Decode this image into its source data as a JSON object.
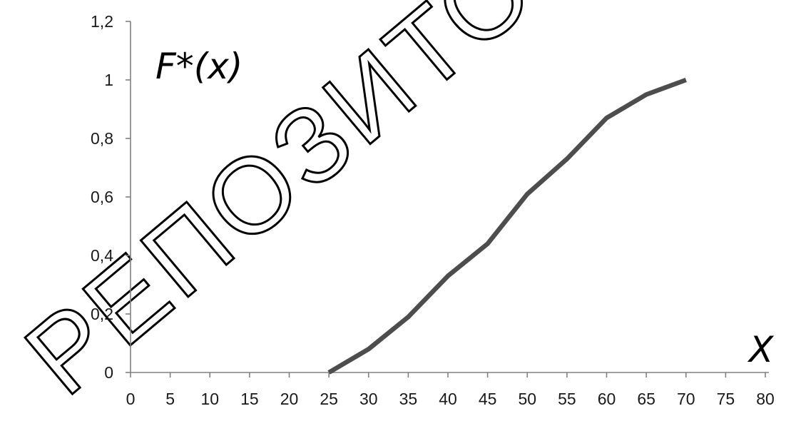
{
  "watermark": {
    "text": "РЕПОЗИТОРИЙ"
  },
  "chart_data": {
    "type": "line",
    "title": "",
    "xlabel": "X",
    "ylabel": "F*(x)",
    "xlim": [
      0,
      80
    ],
    "ylim": [
      0,
      1.2
    ],
    "x_ticks": [
      0,
      5,
      10,
      15,
      20,
      25,
      30,
      35,
      40,
      45,
      50,
      55,
      60,
      65,
      70,
      75,
      80
    ],
    "x_tick_labels": [
      "0",
      "5",
      "10",
      "15",
      "20",
      "25",
      "30",
      "35",
      "40",
      "45",
      "50",
      "55",
      "60",
      "65",
      "70",
      "75",
      "80"
    ],
    "y_ticks": [
      0,
      0.2,
      0.4,
      0.6,
      0.8,
      1,
      1.2
    ],
    "y_tick_labels": [
      "0",
      "0,2",
      "0,4",
      "0,6",
      "0,8",
      "1",
      "1,2"
    ],
    "grid": false,
    "legend": "none",
    "series": [
      {
        "color": "#4d4d4d",
        "x": [
          25,
          30,
          35,
          40,
          45,
          50,
          55,
          60,
          65,
          70
        ],
        "y": [
          0,
          0.08,
          0.19,
          0.33,
          0.44,
          0.61,
          0.73,
          0.87,
          0.95,
          1.0
        ]
      }
    ]
  }
}
